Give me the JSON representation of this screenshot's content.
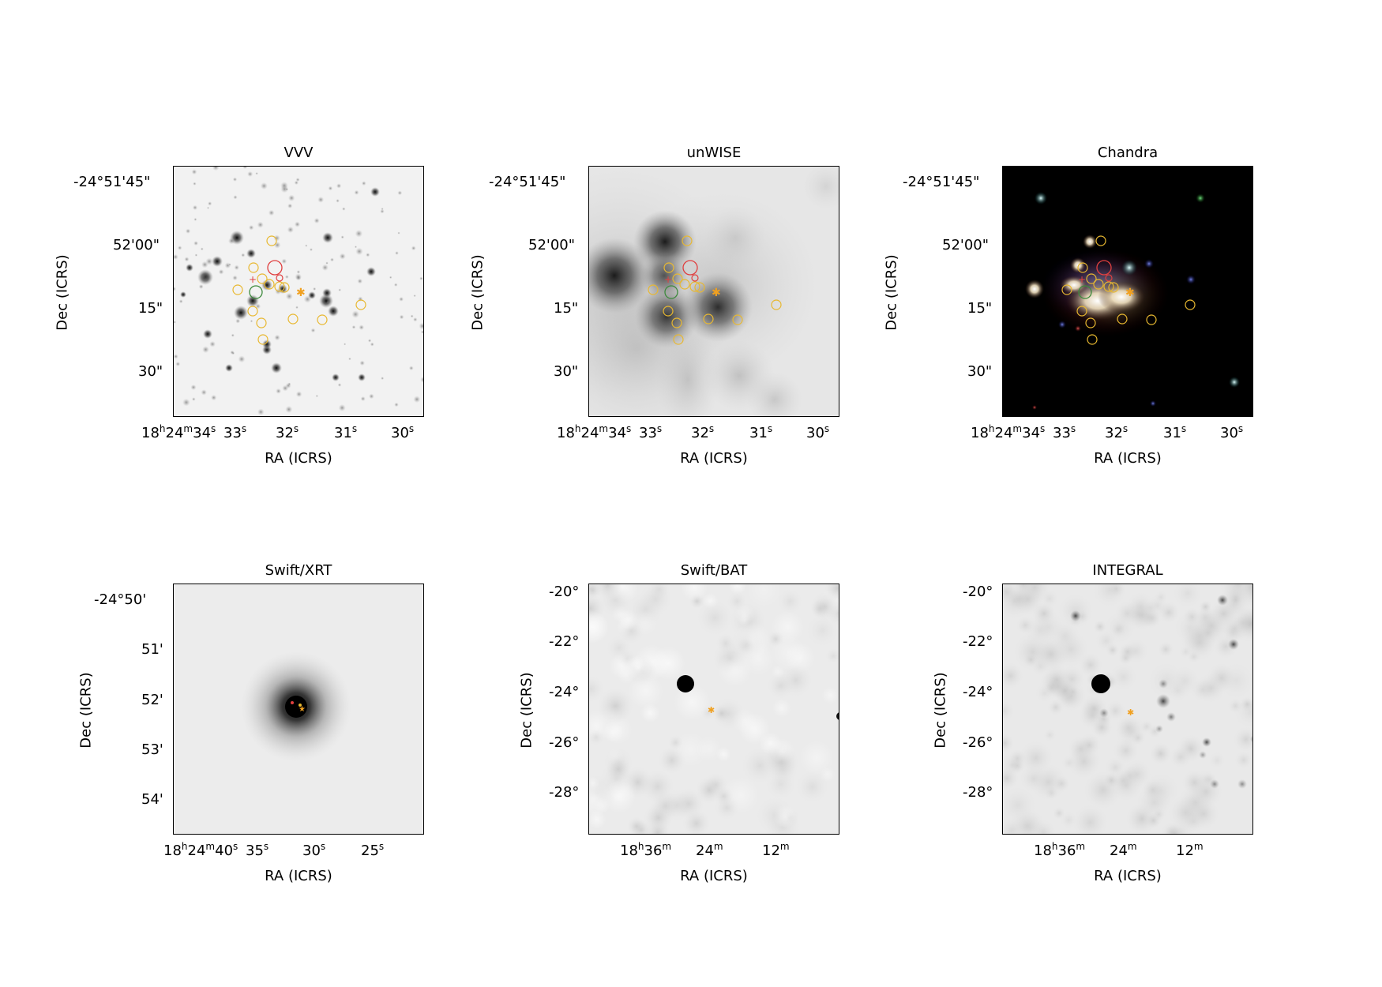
{
  "panels": [
    {
      "id": "vvv",
      "title": "VVV",
      "xlabel": "RA (ICRS)",
      "ylabel": "Dec (ICRS)",
      "xticks": [
        "18h24m34s",
        "33s",
        "32s",
        "31s",
        "30s"
      ],
      "yticks": [
        "-24°51'45\"",
        "52'00\"",
        "15\"",
        "30\""
      ]
    },
    {
      "id": "unwise",
      "title": "unWISE",
      "xlabel": "RA (ICRS)",
      "ylabel": "Dec (ICRS)",
      "xticks": [
        "18h24m34s",
        "33s",
        "32s",
        "31s",
        "30s"
      ],
      "yticks": [
        "-24°51'45\"",
        "52'00\"",
        "15\"",
        "30\""
      ]
    },
    {
      "id": "chandra",
      "title": "Chandra",
      "xlabel": "RA (ICRS)",
      "ylabel": "Dec (ICRS)",
      "xticks": [
        "18h24m34s",
        "33s",
        "32s",
        "31s",
        "30s"
      ],
      "yticks": [
        "-24°51'45\"",
        "52'00\"",
        "15\"",
        "30\""
      ]
    },
    {
      "id": "swift-xrt",
      "title": "Swift/XRT",
      "xlabel": "RA (ICRS)",
      "ylabel": "Dec (ICRS)",
      "xticks": [
        "18h24m40s",
        "35s",
        "30s",
        "25s"
      ],
      "yticks": [
        "-24°50'",
        "51'",
        "52'",
        "53'",
        "54'"
      ]
    },
    {
      "id": "swift-bat",
      "title": "Swift/BAT",
      "xlabel": "RA (ICRS)",
      "ylabel": "Dec (ICRS)",
      "xticks": [
        "18h36m",
        "24m",
        "12m"
      ],
      "yticks": [
        "-20°",
        "-22°",
        "-24°",
        "-26°",
        "-28°"
      ]
    },
    {
      "id": "integral",
      "title": "INTEGRAL",
      "xlabel": "RA (ICRS)",
      "ylabel": "Dec (ICRS)",
      "xticks": [
        "18h36m",
        "24m",
        "12m"
      ],
      "yticks": [
        "-20°",
        "-22°",
        "-24°",
        "-26°",
        "-28°"
      ]
    }
  ],
  "colors": {
    "candidate_circle": "#e8b830",
    "xray_circle": "#e04040",
    "green_circle": "#3c8a3c",
    "marker_star": "#f0a020"
  }
}
